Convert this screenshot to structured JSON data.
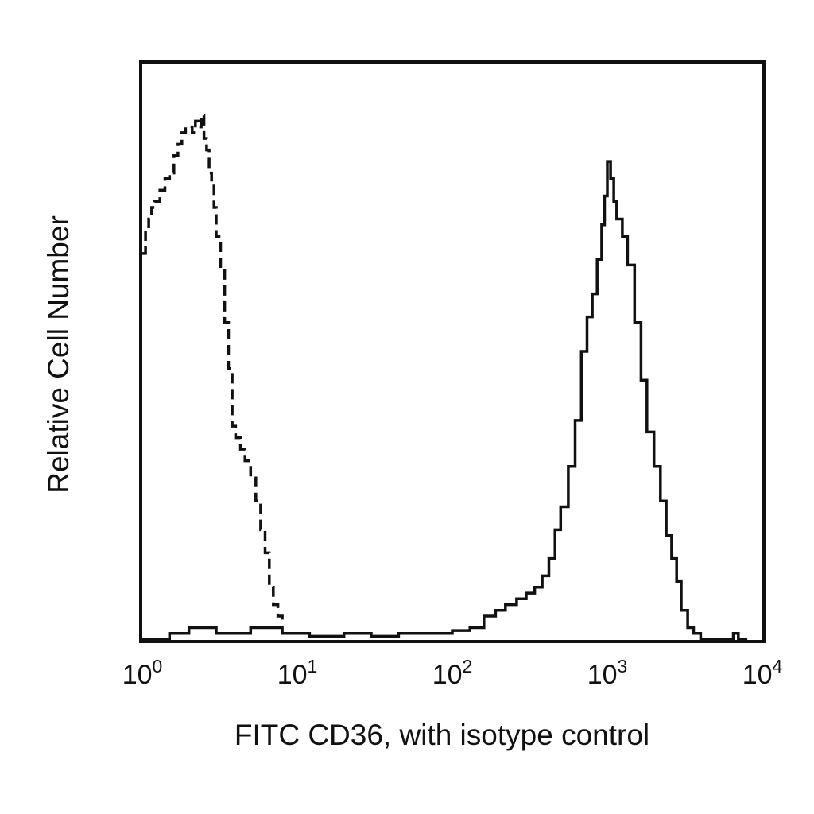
{
  "chart_data": {
    "type": "line",
    "xlabel": "FITC CD36, with isotype control",
    "ylabel": "Relative Cell Number",
    "x_scale": "log",
    "xlim": [
      1,
      10000
    ],
    "ylim": [
      0,
      1
    ],
    "x_ticks": [
      {
        "value": 1,
        "base": "10",
        "exp": "0"
      },
      {
        "value": 10,
        "base": "10",
        "exp": "1"
      },
      {
        "value": 100,
        "base": "10",
        "exp": "2"
      },
      {
        "value": 1000,
        "base": "10",
        "exp": "3"
      },
      {
        "value": 10000,
        "base": "10",
        "exp": "4"
      }
    ],
    "grid": false,
    "legend": "none",
    "series": [
      {
        "style": "dashed",
        "color": "#111111",
        "x": [
          1.0,
          1.05,
          1.1,
          1.15,
          1.2,
          1.3,
          1.4,
          1.5,
          1.6,
          1.7,
          1.8,
          1.9,
          2.0,
          2.1,
          2.2,
          2.3,
          2.4,
          2.5,
          2.6,
          2.7,
          2.8,
          2.9,
          3.0,
          3.2,
          3.4,
          3.6,
          3.8,
          4.0,
          4.3,
          4.6,
          5.0,
          5.4,
          5.8,
          6.2,
          6.6,
          7.0,
          7.5,
          8.0
        ],
        "y": [
          0.67,
          0.71,
          0.73,
          0.75,
          0.76,
          0.78,
          0.8,
          0.81,
          0.84,
          0.86,
          0.88,
          0.89,
          0.89,
          0.88,
          0.9,
          0.89,
          0.91,
          0.87,
          0.85,
          0.81,
          0.79,
          0.75,
          0.7,
          0.64,
          0.55,
          0.47,
          0.37,
          0.35,
          0.33,
          0.31,
          0.28,
          0.24,
          0.19,
          0.15,
          0.09,
          0.06,
          0.04,
          0.03
        ]
      },
      {
        "style": "solid",
        "color": "#111111",
        "x": [
          1.0,
          1.5,
          2.0,
          3.0,
          5.0,
          8.0,
          12,
          20,
          30,
          45,
          60,
          80,
          100,
          130,
          160,
          190,
          220,
          260,
          300,
          340,
          380,
          420,
          460,
          500,
          560,
          620,
          680,
          740,
          800,
          860,
          920,
          960,
          1000,
          1050,
          1100,
          1150,
          1250,
          1350,
          1500,
          1650,
          1800,
          2000,
          2200,
          2400,
          2600,
          2800,
          3000,
          3300,
          3600,
          4000,
          5000,
          6000,
          6500,
          7000,
          8000
        ],
        "y": [
          0.0,
          0.01,
          0.02,
          0.01,
          0.02,
          0.01,
          0.005,
          0.01,
          0.005,
          0.01,
          0.01,
          0.01,
          0.015,
          0.02,
          0.04,
          0.05,
          0.06,
          0.07,
          0.08,
          0.09,
          0.11,
          0.14,
          0.19,
          0.23,
          0.3,
          0.38,
          0.5,
          0.56,
          0.6,
          0.66,
          0.72,
          0.77,
          0.83,
          0.8,
          0.76,
          0.73,
          0.7,
          0.65,
          0.55,
          0.45,
          0.36,
          0.3,
          0.24,
          0.18,
          0.14,
          0.1,
          0.05,
          0.02,
          0.01,
          0.0,
          0.0,
          0.0,
          0.01,
          0.0,
          0.0
        ]
      }
    ]
  }
}
